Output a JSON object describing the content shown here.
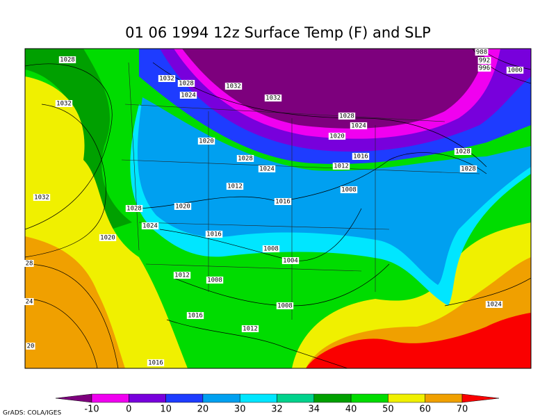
{
  "title": "01 06 1994 12z Surface Temp (F) and SLP",
  "colorbar": {
    "levels": [
      -10,
      0,
      10,
      20,
      30,
      32,
      34,
      40,
      50,
      60,
      70
    ],
    "colors": [
      "#7d007d",
      "#f000f0",
      "#7800dc",
      "#1e3cff",
      "#00a0f0",
      "#00e6ff",
      "#00d28c",
      "#00a000",
      "#00dc00",
      "#f0f000",
      "#f0a000",
      "#fa0000"
    ]
  },
  "isobar_labels": [
    "1028",
    "1032",
    "1032",
    "1028",
    "1024",
    "1020",
    "1020",
    "1016",
    "1012",
    "1016",
    "1008",
    "1008",
    "1004",
    "1012",
    "1008",
    "1008",
    "1016",
    "1012",
    "1016",
    "1024",
    "1032",
    "1028",
    "1024",
    "1032",
    "1032",
    "1020",
    "1028",
    "1024",
    "1028",
    "1024",
    "1020",
    "1016",
    "1012",
    "1028",
    "1028",
    "988",
    "992",
    "996",
    "1000",
    "28",
    "24",
    "20"
  ],
  "credit": "GrADS: COLA/IGES"
}
